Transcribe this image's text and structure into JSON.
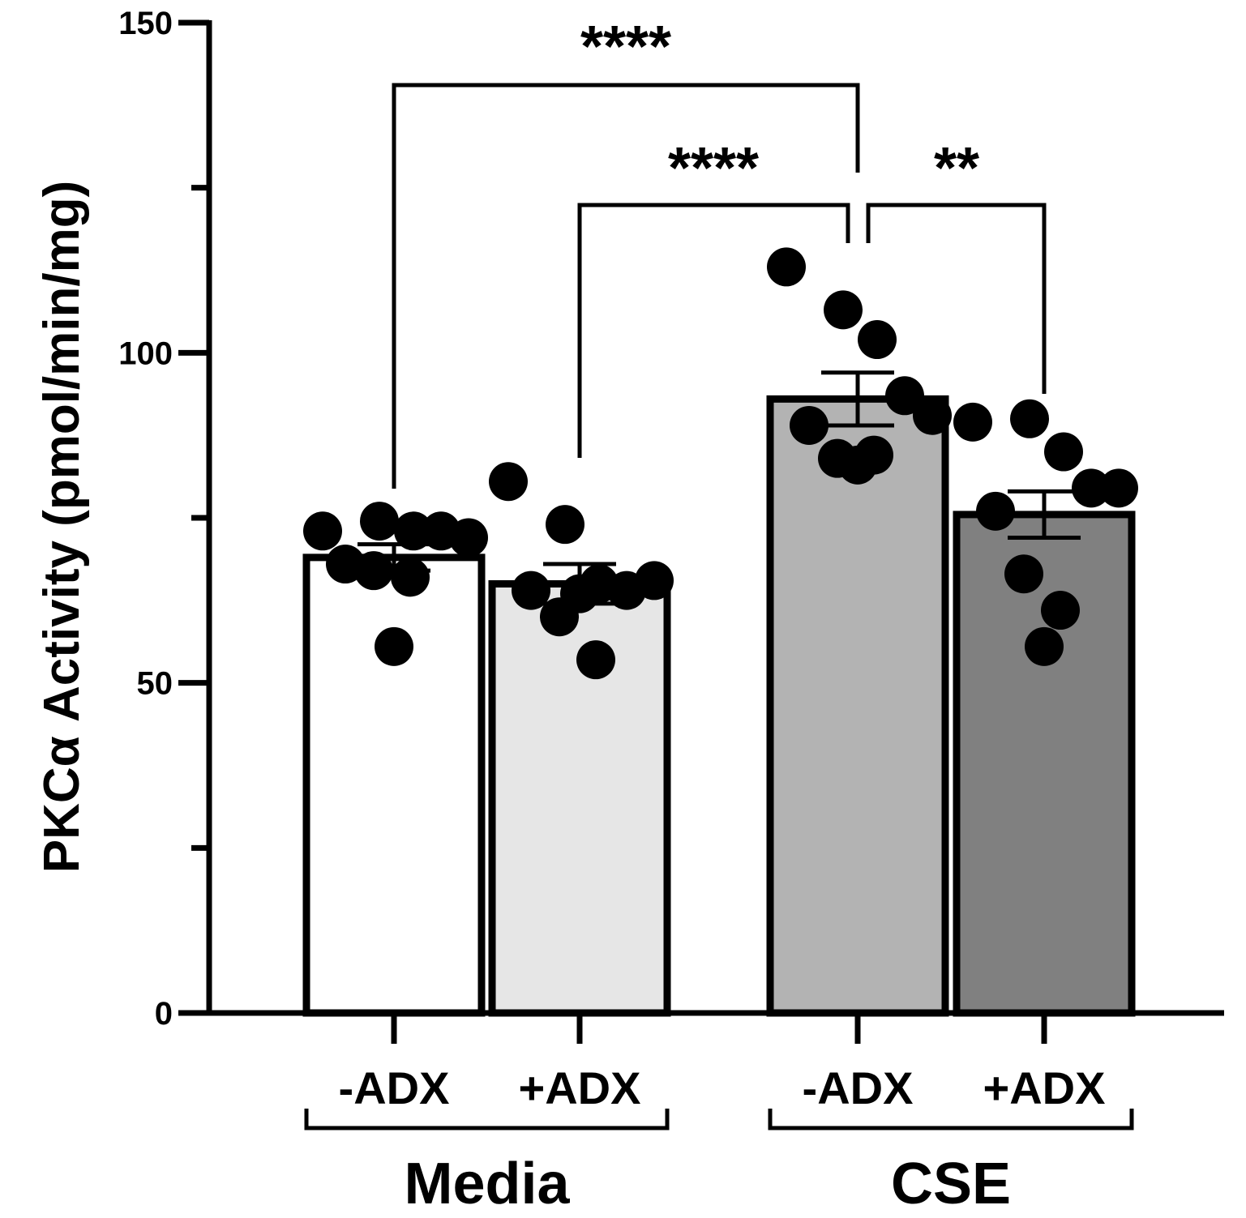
{
  "chart_data": {
    "type": "bar",
    "ylabel": "PKCα Activity (pmol/min/mg)",
    "ylim": [
      0,
      150
    ],
    "yticks": [
      0,
      50,
      100,
      150
    ],
    "ytick_labels": [
      "0",
      "50",
      "100",
      "150"
    ],
    "y_minor_ticks": [
      25,
      75,
      125
    ],
    "categories": [
      "-ADX",
      "+ADX",
      "-ADX",
      "+ADX"
    ],
    "groups": [
      {
        "name": "Media",
        "categories": [
          0,
          1
        ]
      },
      {
        "name": "CSE",
        "categories": [
          2,
          3
        ]
      }
    ],
    "bars": [
      {
        "label": "-ADX",
        "group": "Media",
        "mean": 69,
        "sem": 2,
        "color": "#ffffff",
        "points": [
          73,
          74.5,
          73,
          73,
          72,
          68,
          67,
          66,
          55.5
        ]
      },
      {
        "label": "+ADX",
        "group": "Media",
        "mean": 65,
        "sem": 3,
        "color": "#e6e6e6",
        "points": [
          80.5,
          74,
          65,
          64,
          65.5,
          64,
          60,
          53.5,
          63.5
        ]
      },
      {
        "label": "-ADX",
        "group": "CSE",
        "mean": 93,
        "sem": 4,
        "color": "#b3b3b3",
        "points": [
          113,
          106.5,
          102,
          93.5,
          90.5,
          89,
          84,
          84.5,
          83
        ]
      },
      {
        "label": "+ADX",
        "group": "CSE",
        "mean": 75.5,
        "sem": 3.5,
        "color": "#808080",
        "points": [
          89.5,
          90,
          85,
          79.5,
          79.5,
          76,
          66.5,
          61,
          55.5
        ]
      }
    ],
    "significance": [
      {
        "from": 0,
        "to": 2,
        "label": "****"
      },
      {
        "from": 1,
        "to": 2,
        "label": "****"
      },
      {
        "from": 2,
        "to": 3,
        "label": "**"
      }
    ]
  }
}
